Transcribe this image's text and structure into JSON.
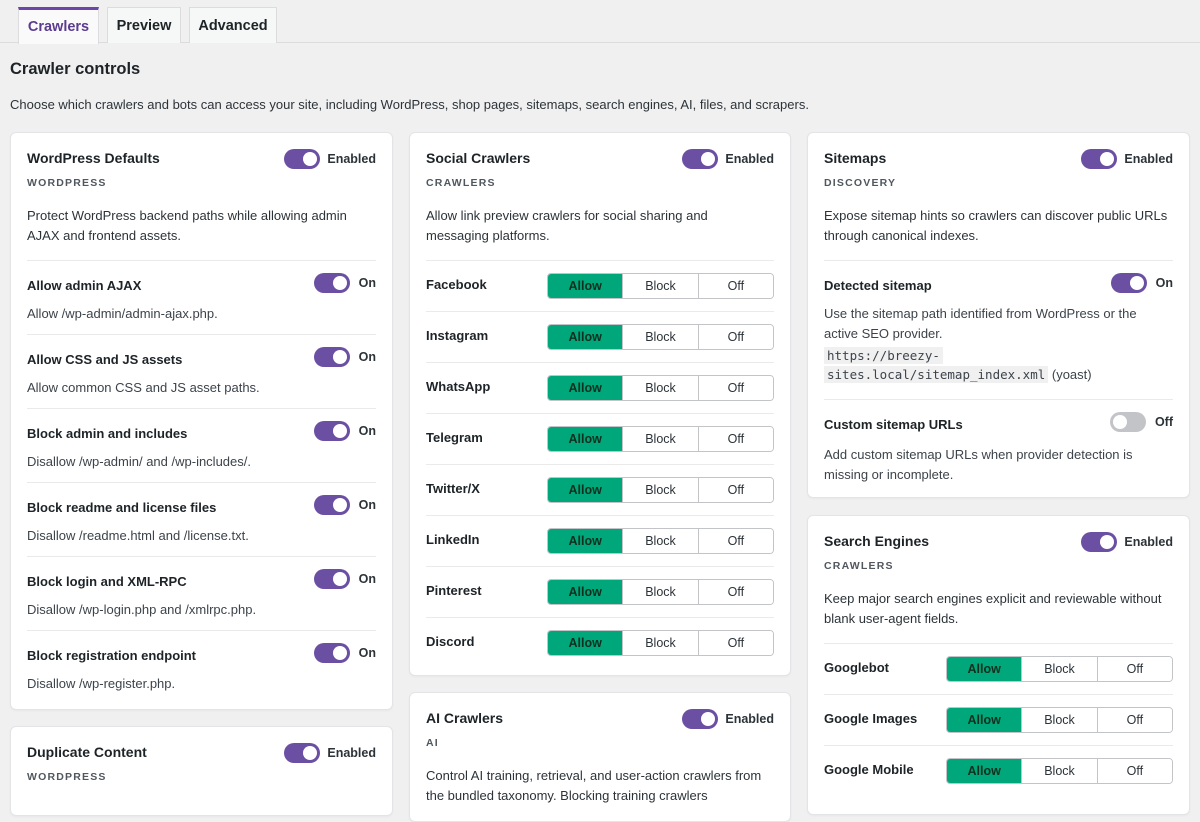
{
  "tabs": [
    {
      "label": "Crawlers",
      "active": true
    },
    {
      "label": "Preview",
      "active": false
    },
    {
      "label": "Advanced",
      "active": false
    }
  ],
  "page": {
    "title": "Crawler controls",
    "description": "Choose which crawlers and bots can access your site, including WordPress, shop pages, sitemaps, search engines, AI, files, and scrapers."
  },
  "colors": {
    "accent": "#6b4fa3",
    "allow": "#00a77a"
  },
  "wordpress_defaults": {
    "title": "WordPress Defaults",
    "category": "WORDPRESS",
    "toggle_label": "Enabled",
    "description": "Protect WordPress backend paths while allowing admin AJAX and frontend assets.",
    "items": [
      {
        "title": "Allow admin AJAX",
        "desc": "Allow /wp-admin/admin-ajax.php.",
        "state": "On"
      },
      {
        "title": "Allow CSS and JS assets",
        "desc": "Allow common CSS and JS asset paths.",
        "state": "On"
      },
      {
        "title": "Block admin and includes",
        "desc": "Disallow /wp-admin/ and /wp-includes/.",
        "state": "On"
      },
      {
        "title": "Block readme and license files",
        "desc": "Disallow /readme.html and /license.txt.",
        "state": "On"
      },
      {
        "title": "Block login and XML-RPC",
        "desc": "Disallow /wp-login.php and /xmlrpc.php.",
        "state": "On"
      },
      {
        "title": "Block registration endpoint",
        "desc": "Disallow /wp-register.php.",
        "state": "On"
      }
    ]
  },
  "duplicate_content": {
    "title": "Duplicate Content",
    "category": "WORDPRESS",
    "toggle_label": "Enabled"
  },
  "social_crawlers": {
    "title": "Social Crawlers",
    "category": "CRAWLERS",
    "toggle_label": "Enabled",
    "description": "Allow link preview crawlers for social sharing and messaging platforms.",
    "options": [
      "Allow",
      "Block",
      "Off"
    ],
    "items": [
      {
        "name": "Facebook",
        "selected": "Allow"
      },
      {
        "name": "Instagram",
        "selected": "Allow"
      },
      {
        "name": "WhatsApp",
        "selected": "Allow"
      },
      {
        "name": "Telegram",
        "selected": "Allow"
      },
      {
        "name": "Twitter/X",
        "selected": "Allow"
      },
      {
        "name": "LinkedIn",
        "selected": "Allow"
      },
      {
        "name": "Pinterest",
        "selected": "Allow"
      },
      {
        "name": "Discord",
        "selected": "Allow"
      }
    ]
  },
  "ai_crawlers": {
    "title": "AI Crawlers",
    "category": "AI",
    "toggle_label": "Enabled",
    "description": "Control AI training, retrieval, and user-action crawlers from the bundled taxonomy. Blocking training crawlers"
  },
  "sitemaps": {
    "title": "Sitemaps",
    "category": "DISCOVERY",
    "toggle_label": "Enabled",
    "description": "Expose sitemap hints so crawlers can discover public URLs through canonical indexes.",
    "detected": {
      "title": "Detected sitemap",
      "state": "On",
      "desc": "Use the sitemap path identified from WordPress or the active SEO provider.",
      "url_line1": "https://breezy-",
      "url_line2": "sites.local/sitemap_index.xml",
      "provider": "(yoast)"
    },
    "custom": {
      "title": "Custom sitemap URLs",
      "state": "Off",
      "desc": "Add custom sitemap URLs when provider detection is missing or incomplete."
    }
  },
  "search_engines": {
    "title": "Search Engines",
    "category": "CRAWLERS",
    "toggle_label": "Enabled",
    "description": "Keep major search engines explicit and reviewable without blank user-agent fields.",
    "options": [
      "Allow",
      "Block",
      "Off"
    ],
    "items": [
      {
        "name": "Googlebot",
        "selected": "Allow"
      },
      {
        "name": "Google Images",
        "selected": "Allow"
      },
      {
        "name": "Google Mobile",
        "selected": "Allow"
      }
    ]
  }
}
